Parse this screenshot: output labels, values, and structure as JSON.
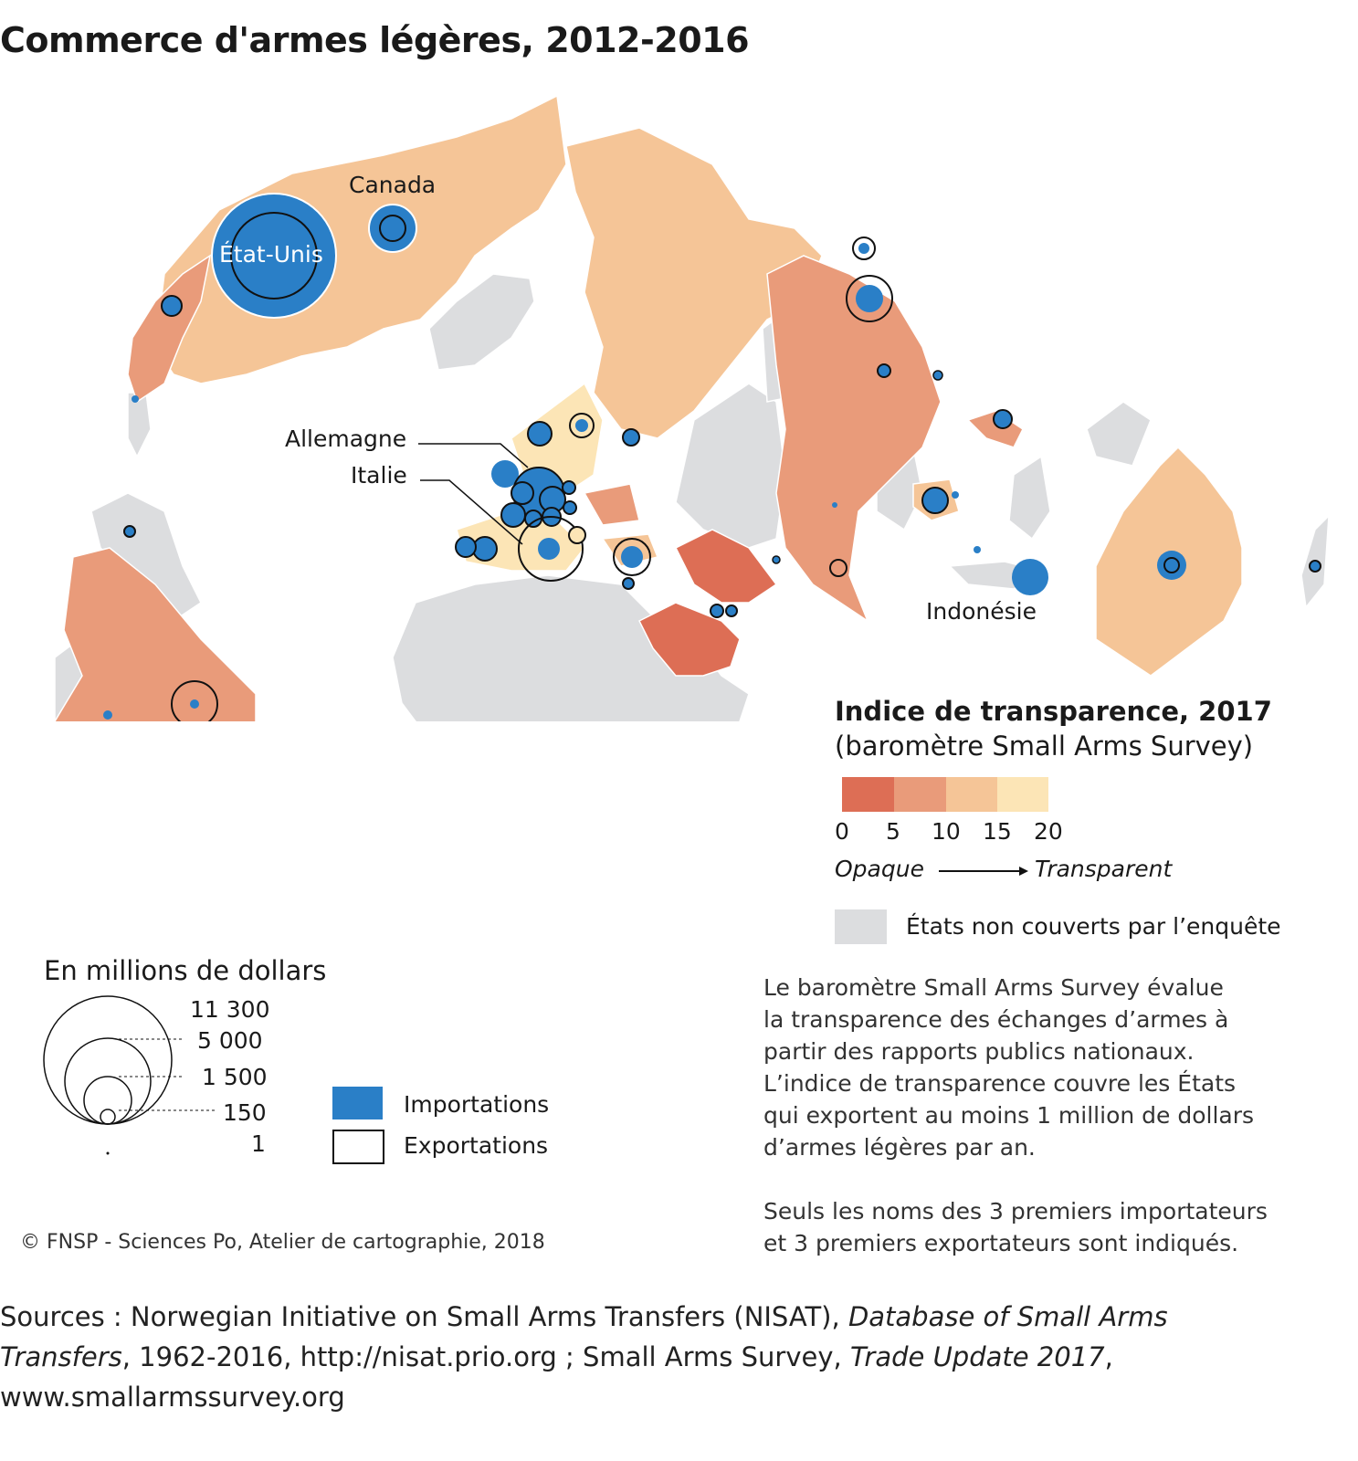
{
  "title": "Commerce d'armes légères, 2012-2016",
  "map_labels": {
    "canada": "Canada",
    "usa": "État-Unis",
    "germany": "Allemagne",
    "italy": "Italie",
    "indonesia": "Indonésie"
  },
  "transparency_legend": {
    "title": "Indice de transparence, 2017",
    "subtitle": "(baromètre Small Arms Survey)",
    "ticks": [
      "0",
      "5",
      "10",
      "15",
      "20"
    ],
    "colors": [
      "#dd6e55",
      "#e99b7a",
      "#f5c597",
      "#fce5b6"
    ],
    "opaque": "Opaque",
    "transparent": "Transparent",
    "not_covered": "États non couverts par l’enquête",
    "not_covered_color": "#dcdddf"
  },
  "size_legend": {
    "title": "En millions de dollars",
    "values": [
      "11 300",
      "5 000",
      "1 500",
      "150",
      "1"
    ],
    "imports_label": "Importations",
    "exports_label": "Exportations",
    "import_color": "#2a7fc7"
  },
  "notes": {
    "lines": [
      "Le baromètre Small Arms Survey évalue",
      "la transparence des échanges d’armes à",
      "partir des rapports publics nationaux.",
      "L’indice de transparence couvre les États",
      "qui exportent au moins 1 million de dollars",
      "d’armes légères par an."
    ],
    "lines2": [
      "Seuls les noms des 3 premiers importateurs",
      "et 3 premiers exportateurs sont indiqués."
    ]
  },
  "copyright": "© FNSP - Sciences Po, Atelier de cartographie, 2018",
  "sources": {
    "l1a": "Sources : Norwegian Initiative on Small Arms Transfers (NISAT), ",
    "l1b": "Database of Small Arms",
    "l2a": "Transfers",
    "l2b": ", 1962-2016, http://nisat.prio.org ; Small Arms Survey, ",
    "l2c": "Trade Update 2017",
    "l2d": ",",
    "l3": "www.smallarmssurvey.org"
  }
}
